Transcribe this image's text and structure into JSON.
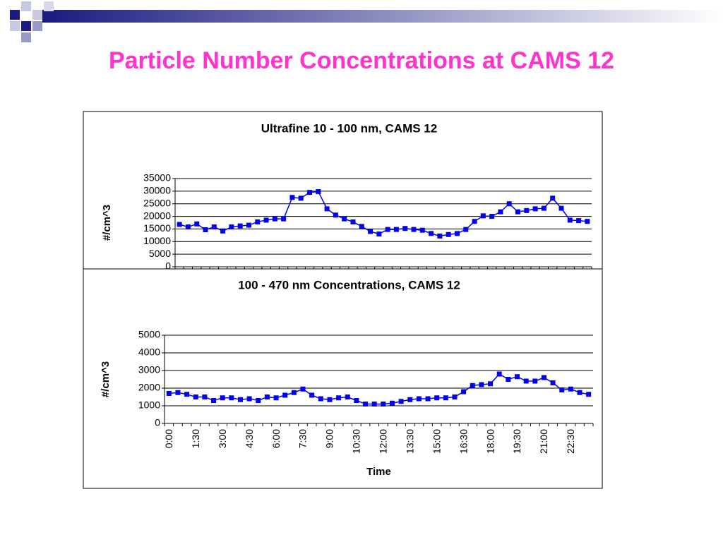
{
  "title": "Particle Number Concentrations at CAMS 12",
  "chart_data": [
    {
      "type": "line",
      "title": "Ultrafine 10 - 100 nm, CAMS 12",
      "ylabel": "#/cm^3",
      "color": "#0000ee",
      "values": [
        16800,
        15800,
        17000,
        14700,
        15800,
        14200,
        15800,
        16200,
        16500,
        17800,
        18500,
        19000,
        19000,
        27500,
        27200,
        29500,
        29800,
        23000,
        20500,
        19000,
        17800,
        16000,
        14000,
        13000,
        14800,
        14800,
        15200,
        14800,
        14500,
        13200,
        12200,
        12800,
        13200,
        14800,
        18000,
        20200,
        20000,
        21800,
        25000,
        21800,
        22300,
        23000,
        23200,
        27200,
        23200,
        18500,
        18300,
        18000
      ],
      "ylim": [
        0,
        35000
      ],
      "yticks": [
        0,
        5000,
        10000,
        15000,
        20000,
        25000,
        30000,
        35000
      ],
      "grid": true
    },
    {
      "type": "line",
      "title": "100 - 470 nm Concentrations, CAMS 12",
      "ylabel": "#/cm^3",
      "xlabel": "Time",
      "color": "#0000ee",
      "categories": [
        "0:00",
        null,
        null,
        "1:30",
        null,
        null,
        "3:00",
        null,
        null,
        "4:30",
        null,
        null,
        "6:00",
        null,
        null,
        "7:30",
        null,
        null,
        "9:00",
        null,
        null,
        "10:30",
        null,
        null,
        "12:00",
        null,
        null,
        "13:30",
        null,
        null,
        "15:00",
        null,
        null,
        "16:30",
        null,
        null,
        "18:00",
        null,
        null,
        "19:30",
        null,
        null,
        "21:00",
        null,
        null,
        "22:30",
        null,
        null
      ],
      "values": [
        1700,
        1750,
        1650,
        1500,
        1500,
        1300,
        1450,
        1450,
        1350,
        1400,
        1300,
        1500,
        1450,
        1600,
        1750,
        1950,
        1600,
        1400,
        1350,
        1450,
        1500,
        1300,
        1100,
        1100,
        1100,
        1150,
        1250,
        1350,
        1400,
        1400,
        1450,
        1450,
        1500,
        1800,
        2150,
        2200,
        2250,
        2800,
        2500,
        2650,
        2400,
        2400,
        2600,
        2300,
        1900,
        1950,
        1750,
        1650
      ],
      "ylim": [
        0,
        5000
      ],
      "yticks": [
        0,
        1000,
        2000,
        3000,
        4000,
        5000
      ],
      "grid": true
    }
  ]
}
